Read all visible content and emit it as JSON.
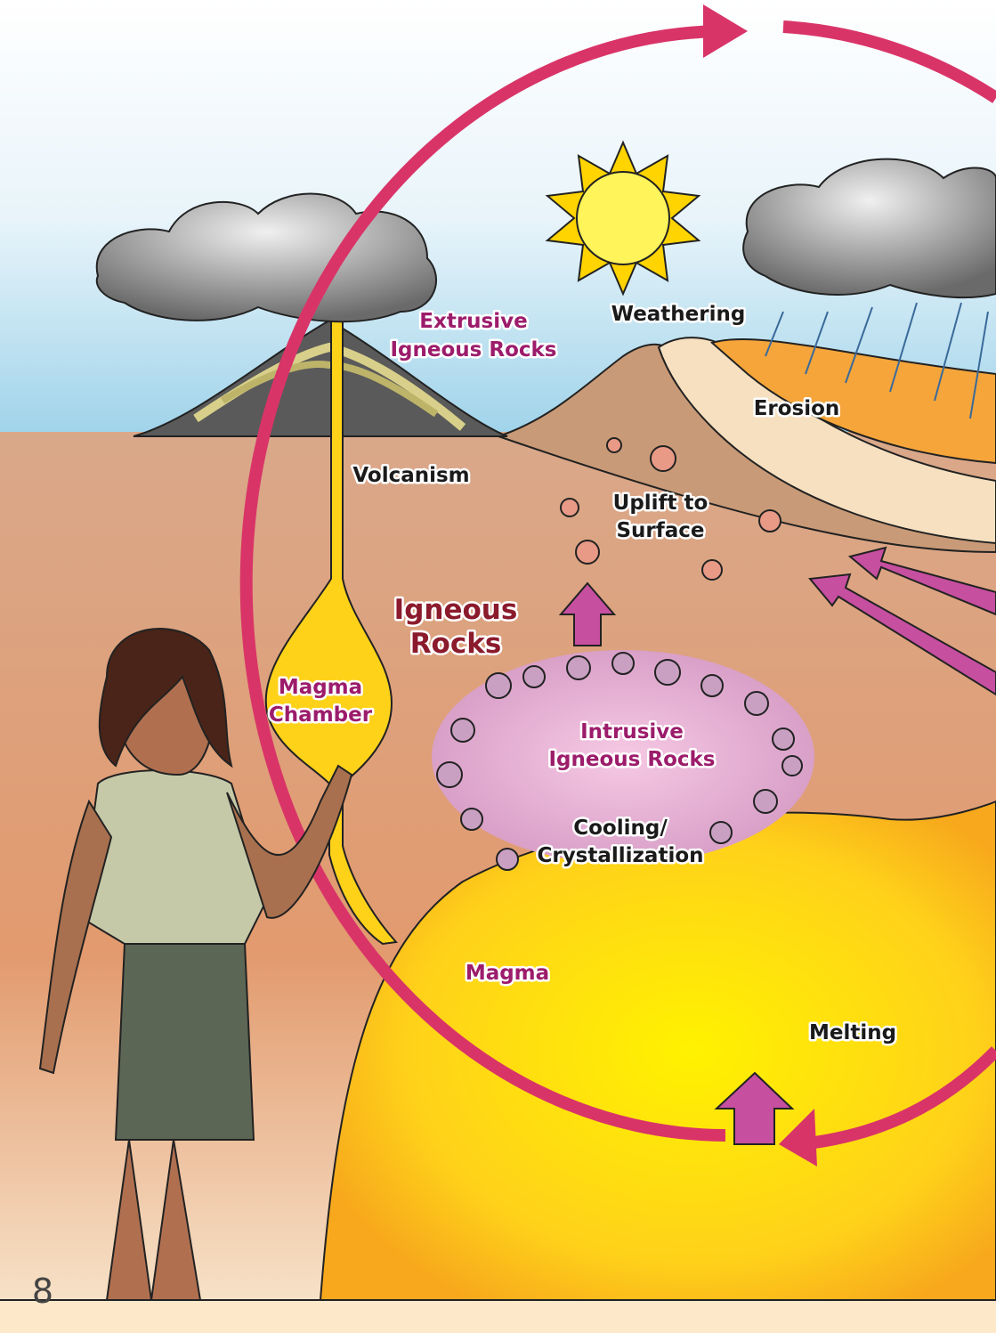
{
  "labels": {
    "extrusive": [
      "Extrusive",
      "Igneous Rocks"
    ],
    "weathering": "Weathering",
    "erosion": "Erosion",
    "volcanism": "Volcanism",
    "uplift": [
      "Uplift to",
      "Surface"
    ],
    "igneous": [
      "Igneous",
      "Rocks"
    ],
    "magma_chamber": [
      "Magma",
      "Chamber"
    ],
    "intrusive": [
      "Intrusive",
      "Igneous Rocks"
    ],
    "cooling": [
      "Cooling/",
      "Crystallization"
    ],
    "magma": "Magma",
    "melting": "Melting"
  },
  "page_number": "8"
}
